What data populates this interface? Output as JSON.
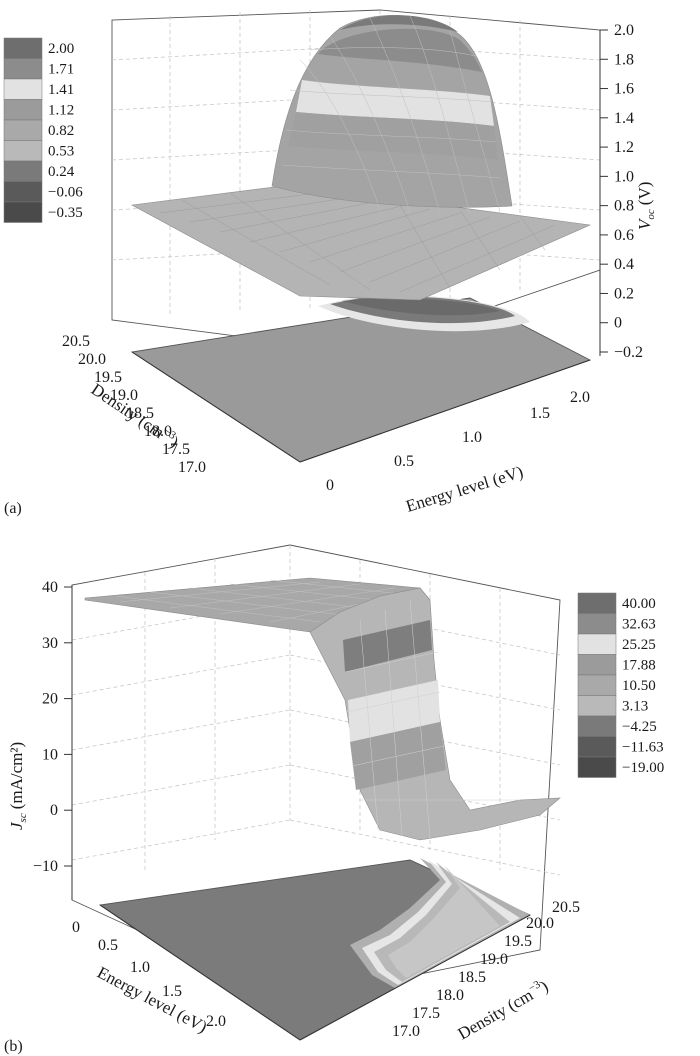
{
  "chart_data": [
    {
      "type": "surface",
      "panel_label": "(a)",
      "zlabel_main": "V",
      "zlabel_sub": "oc",
      "zlabel_unit": "(V)",
      "xlabel": "Energy level (eV)",
      "ylabel_main": "Density (cm",
      "ylabel_sup": "−3",
      "ylabel_end": ")",
      "x_ticks": [
        "0",
        "0.5",
        "1.0",
        "1.5",
        "2.0"
      ],
      "y_ticks": [
        "17.0",
        "17.5",
        "18.0",
        "18.5",
        "19.0",
        "19.5",
        "20.0",
        "20.5"
      ],
      "z_ticks": [
        "−0.2",
        "0",
        "0.2",
        "0.4",
        "0.6",
        "0.8",
        "1.0",
        "1.2",
        "1.4",
        "1.6",
        "1.8",
        "2.0"
      ],
      "legend_levels": [
        "2.00",
        "1.71",
        "1.41",
        "1.12",
        "0.82",
        "0.53",
        "0.24",
        "−0.06",
        "−0.35"
      ],
      "legend_position": "top-left",
      "plateau_value": 0.75,
      "peak_value": 2.0,
      "grid": true
    },
    {
      "type": "surface",
      "panel_label": "(b)",
      "zlabel_main": "J",
      "zlabel_sub": "sc",
      "zlabel_unit": "(mA/cm²)",
      "xlabel": "Energy level (eV)",
      "ylabel_main": "Density (cm",
      "ylabel_sup": "−3",
      "ylabel_end": ")",
      "x_ticks": [
        "0",
        "0.5",
        "1.0",
        "1.5",
        "2.0"
      ],
      "y_ticks": [
        "17.0",
        "17.5",
        "18.0",
        "18.5",
        "19.0",
        "19.5",
        "20.0",
        "20.5"
      ],
      "z_ticks": [
        "−10",
        "0",
        "10",
        "20",
        "30",
        "40"
      ],
      "legend_levels": [
        "40.00",
        "32.63",
        "25.25",
        "17.88",
        "10.50",
        "3.13",
        "−4.25",
        "−11.63",
        "−19.00"
      ],
      "legend_position": "top-right",
      "plateau_value": 37,
      "min_value": -3,
      "grid": true
    }
  ],
  "colors": {
    "legend": [
      "#6e6e6e",
      "#8c8c8c",
      "#e2e2e2",
      "#9b9b9b",
      "#a9a9a9",
      "#b9b9b9",
      "#7a7a7a",
      "#5a5a5a",
      "#4a4a4a"
    ],
    "surface": "#a8a8a8",
    "floor": "#9a9a9a",
    "floor_dark": "#7b7b7b",
    "grid": "#c8c8c8"
  }
}
